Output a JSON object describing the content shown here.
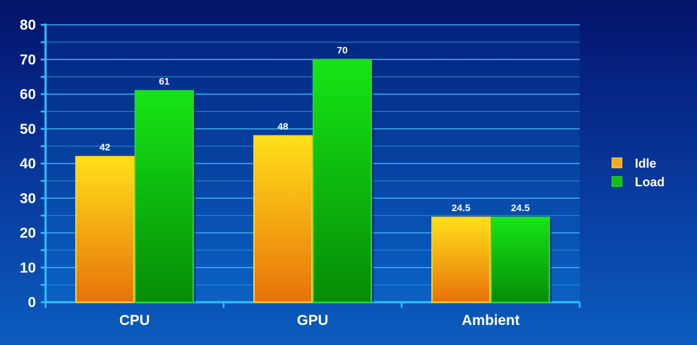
{
  "chart_data": {
    "type": "bar",
    "categories": [
      "CPU",
      "GPU",
      "Ambient"
    ],
    "series": [
      {
        "name": "Idle",
        "values": [
          42,
          48,
          24.5
        ],
        "color": "#f5a623"
      },
      {
        "name": "Load",
        "values": [
          61,
          70,
          24.5
        ],
        "color": "#11c011"
      }
    ],
    "ylim": [
      0,
      80
    ],
    "yticks": [
      0,
      10,
      20,
      30,
      40,
      50,
      60,
      70,
      80
    ],
    "grid": true,
    "legend": "right"
  }
}
